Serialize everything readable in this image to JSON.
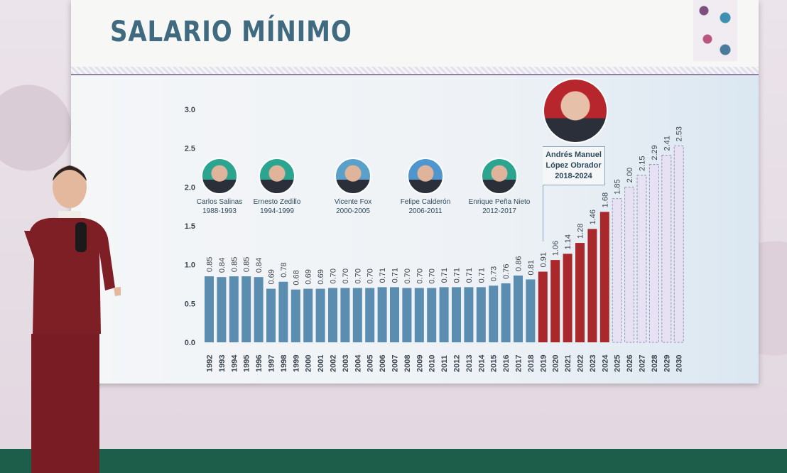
{
  "header": {
    "title": "SALARIO MÍNIMO"
  },
  "presidents": [
    {
      "name": "Carlos Salinas",
      "term": "1988-1993"
    },
    {
      "name": "Ernesto Zedillo",
      "term": "1994-1999"
    },
    {
      "name": "Vicente Fox",
      "term": "2000-2005"
    },
    {
      "name": "Felipe Calderón",
      "term": "2006-2011"
    },
    {
      "name": "Enrique Peña Nieto",
      "term": "2012-2017"
    },
    {
      "name_line1": "Andrés Manuel",
      "name_line2": "López Obrador",
      "term": "2018-2024"
    }
  ],
  "colors": {
    "past": "#5b8db0",
    "amlo": "#a8282c",
    "projected": "#e6e2f3",
    "projected_border": "#9a8fb8"
  },
  "chart_data": {
    "type": "bar",
    "title": "SALARIO MÍNIMO",
    "xlabel": "",
    "ylabel": "",
    "ylim": [
      0,
      3
    ],
    "yticks": [
      "0.0",
      "0.5",
      "1.0",
      "1.5",
      "2.0",
      "2.5",
      "3.0"
    ],
    "categories": [
      "1992",
      "1993",
      "1994",
      "1995",
      "1996",
      "1997",
      "1998",
      "1999",
      "2000",
      "2001",
      "2002",
      "2003",
      "2004",
      "2005",
      "2006",
      "2007",
      "2008",
      "2009",
      "2010",
      "2011",
      "2012",
      "2013",
      "2014",
      "2015",
      "2016",
      "2017",
      "2018",
      "2019",
      "2020",
      "2021",
      "2022",
      "2023",
      "2024",
      "2025",
      "2026",
      "2027",
      "2028",
      "2029",
      "2030"
    ],
    "values": [
      0.85,
      0.84,
      0.85,
      0.85,
      0.84,
      0.69,
      0.78,
      0.68,
      0.69,
      0.69,
      0.7,
      0.7,
      0.7,
      0.7,
      0.71,
      0.71,
      0.7,
      0.7,
      0.7,
      0.71,
      0.71,
      0.71,
      0.71,
      0.73,
      0.76,
      0.86,
      0.81,
      0.91,
      1.06,
      1.14,
      1.28,
      1.46,
      1.68,
      1.85,
      2.0,
      2.15,
      2.29,
      2.41,
      2.53
    ],
    "labels": [
      "0.85",
      "0.84",
      "0.85",
      "0.85",
      "0.84",
      "0.69",
      "0.78",
      "0.68",
      "0.69",
      "0.69",
      "0.70",
      "0.70",
      "0.70",
      "0.70",
      "0.71",
      "0.71",
      "0.70",
      "0.70",
      "0.70",
      "0.71",
      "0.71",
      "0.71",
      "0.71",
      "0.73",
      "0.76",
      "0.86",
      "0.81",
      "0.91",
      "1.06",
      "1.14",
      "1.28",
      "1.46",
      "1.68",
      "1.85",
      "2.00",
      "2.15",
      "2.29",
      "2.41",
      "2.53"
    ],
    "series_groups": {
      "past": [
        1992,
        2018
      ],
      "amlo": [
        2019,
        2024
      ],
      "projected": [
        2025,
        2030
      ]
    },
    "grid": false,
    "legend": "none"
  }
}
